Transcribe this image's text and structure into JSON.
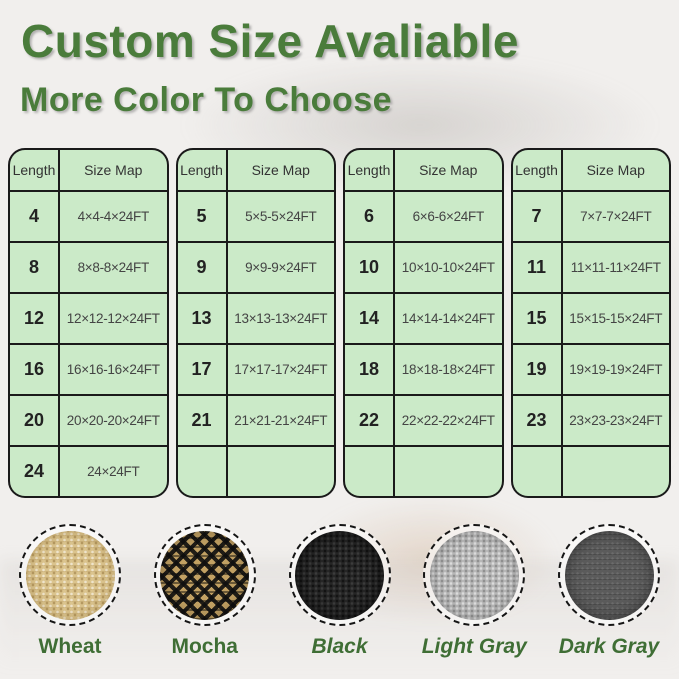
{
  "title": "Custom Size Avaliable",
  "subtitle": "More Color To Choose",
  "tables": [
    {
      "headers": [
        "Length",
        "Size Map"
      ],
      "rows": [
        [
          "4",
          "4×4-4×24FT"
        ],
        [
          "8",
          "8×8-8×24FT"
        ],
        [
          "12",
          "12×12-12×24FT"
        ],
        [
          "16",
          "16×16-16×24FT"
        ],
        [
          "20",
          "20×20-20×24FT"
        ],
        [
          "24",
          "24×24FT"
        ]
      ]
    },
    {
      "headers": [
        "Length",
        "Size Map"
      ],
      "rows": [
        [
          "5",
          "5×5-5×24FT"
        ],
        [
          "9",
          "9×9-9×24FT"
        ],
        [
          "13",
          "13×13-13×24FT"
        ],
        [
          "17",
          "17×17-17×24FT"
        ],
        [
          "21",
          "21×21-21×24FT"
        ],
        [
          "",
          ""
        ]
      ]
    },
    {
      "headers": [
        "Length",
        "Size Map"
      ],
      "rows": [
        [
          "6",
          "6×6-6×24FT"
        ],
        [
          "10",
          "10×10-10×24FT"
        ],
        [
          "14",
          "14×14-14×24FT"
        ],
        [
          "18",
          "18×18-18×24FT"
        ],
        [
          "22",
          "22×22-22×24FT"
        ],
        [
          "",
          ""
        ]
      ]
    },
    {
      "headers": [
        "Length",
        "Size Map"
      ],
      "rows": [
        [
          "7",
          "7×7-7×24FT"
        ],
        [
          "11",
          "11×11-11×24FT"
        ],
        [
          "15",
          "15×15-15×24FT"
        ],
        [
          "19",
          "19×19-19×24FT"
        ],
        [
          "23",
          "23×23-23×24FT"
        ],
        [
          "",
          ""
        ]
      ]
    }
  ],
  "color_swatches": [
    {
      "label": "Wheat",
      "italic": false
    },
    {
      "label": "Mocha",
      "italic": false
    },
    {
      "label": "Black",
      "italic": true
    },
    {
      "label": "Light Gray",
      "italic": true
    },
    {
      "label": "Dark Gray",
      "italic": true
    }
  ],
  "palette": {
    "heading_green": "#4a7c3b",
    "label_green": "#3f6e35",
    "table_green": "#cbeac8",
    "table_border": "#1a1a1a",
    "page_bg": "#f1efed",
    "swatch_wheat": "#dbc48e",
    "swatch_mocha_tan": "#c2a163",
    "swatch_mocha_dark": "#1d1d1d",
    "swatch_black": "#262626",
    "swatch_light_gray": "#b7b7b7",
    "swatch_dark_gray": "#5b5b5b"
  }
}
